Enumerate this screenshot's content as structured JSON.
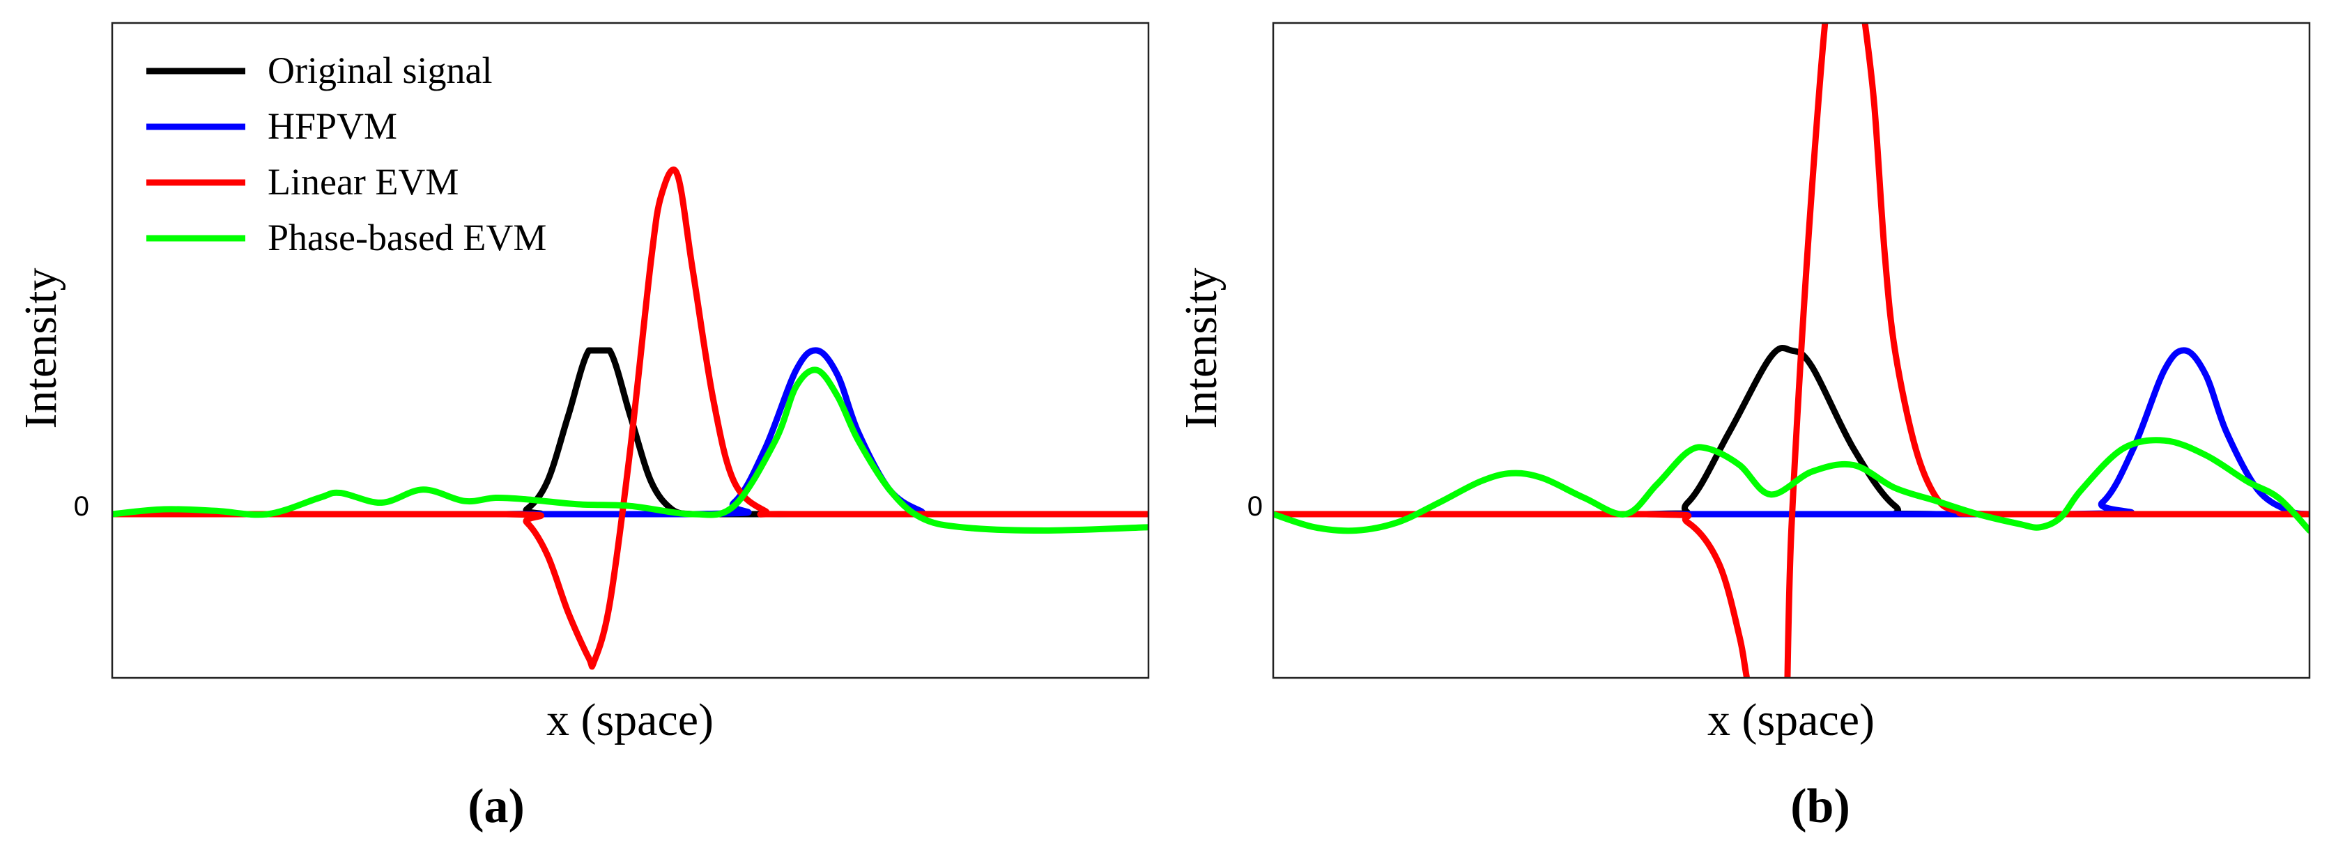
{
  "chart_data": [
    {
      "type": "line",
      "panel_label": "(a)",
      "xlabel": "x (space)",
      "ylabel": "Intensity",
      "y_ticks": [
        "0"
      ],
      "xlim": [
        0,
        10
      ],
      "ylim": [
        -1,
        3
      ],
      "grid": false,
      "legend": {
        "position": "top-left",
        "entries": [
          "Original signal",
          "HFPVM",
          "Linear EVM",
          "Phase-based EVM"
        ]
      },
      "series": [
        {
          "name": "Original signal",
          "color": "#000000",
          "x": [
            0,
            3.8,
            4.0,
            4.2,
            4.4,
            4.6,
            4.8,
            5.0,
            5.2,
            5.4,
            5.6,
            5.8,
            6.0,
            10
          ],
          "y": [
            0,
            0,
            0.03,
            0.2,
            0.6,
            1.0,
            1.0,
            0.6,
            0.2,
            0.03,
            0,
            0,
            0,
            0
          ]
        },
        {
          "name": "HFPVM",
          "color": "#0000ff",
          "x": [
            0,
            5.6,
            6.0,
            6.3,
            6.6,
            6.8,
            7.0,
            7.2,
            7.5,
            7.8,
            8.0,
            10
          ],
          "y": [
            0,
            0,
            0.07,
            0.4,
            0.88,
            1.0,
            0.85,
            0.5,
            0.15,
            0.02,
            0,
            0
          ]
        },
        {
          "name": "Linear EVM",
          "color": "#ff0000",
          "x": [
            0,
            3.8,
            4.0,
            4.2,
            4.4,
            4.6,
            4.65,
            4.8,
            5.0,
            5.2,
            5.3,
            5.45,
            5.6,
            5.8,
            6.0,
            6.3,
            6.6,
            10
          ],
          "y": [
            0,
            0,
            -0.05,
            -0.25,
            -0.6,
            -0.88,
            -0.9,
            -0.55,
            0.4,
            1.55,
            1.95,
            2.08,
            1.5,
            0.7,
            0.2,
            0.02,
            0,
            0
          ]
        },
        {
          "name": "Phase-based EVM",
          "color": "#00ff00",
          "x": [
            0,
            0.5,
            1.0,
            1.5,
            2.0,
            2.2,
            2.6,
            3.0,
            3.4,
            3.7,
            4.0,
            4.5,
            5.0,
            5.6,
            6.0,
            6.4,
            6.6,
            6.8,
            7.0,
            7.2,
            7.5,
            7.8,
            8.2,
            9.0,
            10
          ],
          "y": [
            0,
            0.03,
            0.02,
            0.0,
            0.1,
            0.13,
            0.07,
            0.15,
            0.08,
            0.1,
            0.09,
            0.06,
            0.05,
            0.0,
            0.05,
            0.45,
            0.78,
            0.88,
            0.72,
            0.45,
            0.15,
            -0.02,
            -0.08,
            -0.1,
            -0.08
          ]
        }
      ]
    },
    {
      "type": "line",
      "panel_label": "(b)",
      "xlabel": "x (space)",
      "ylabel": "Intensity",
      "y_ticks": [
        "0"
      ],
      "xlim": [
        0,
        10
      ],
      "ylim": [
        -1,
        3
      ],
      "grid": false,
      "series": [
        {
          "name": "Original signal",
          "color": "#000000",
          "x": [
            0,
            3.6,
            4.0,
            4.4,
            4.8,
            5.0,
            5.2,
            5.6,
            6.0,
            6.4,
            10
          ],
          "y": [
            0,
            0,
            0.07,
            0.5,
            0.96,
            1.0,
            0.9,
            0.4,
            0.05,
            0,
            0
          ]
        },
        {
          "name": "HFPVM",
          "color": "#0000ff",
          "x": [
            0,
            7.6,
            8.0,
            8.3,
            8.6,
            8.8,
            9.0,
            9.2,
            9.5,
            9.8,
            10
          ],
          "y": [
            0,
            0,
            0.07,
            0.4,
            0.88,
            1.0,
            0.85,
            0.5,
            0.15,
            0.02,
            0
          ]
        },
        {
          "name": "Linear EVM",
          "color": "#ff0000",
          "x": [
            0,
            3.6,
            4.0,
            4.3,
            4.5,
            4.6,
            4.9,
            5.0,
            5.2,
            5.4,
            5.6,
            5.7,
            5.8,
            5.9,
            6.0,
            6.2,
            6.4,
            6.6,
            7.0,
            10
          ],
          "y": [
            0,
            0,
            -0.05,
            -0.3,
            -0.75,
            -1.1,
            -2.0,
            -0.1,
            2.0,
            3.4,
            3.5,
            3.05,
            2.5,
            1.6,
            1.0,
            0.4,
            0.1,
            0.02,
            0,
            0
          ]
        },
        {
          "name": "Phase-based EVM",
          "color": "#00ff00",
          "x": [
            0,
            0.4,
            0.8,
            1.2,
            1.6,
            2.0,
            2.3,
            2.6,
            3.0,
            3.4,
            3.7,
            4.0,
            4.2,
            4.5,
            4.8,
            5.2,
            5.6,
            6.0,
            6.4,
            6.8,
            7.2,
            7.4,
            7.6,
            7.8,
            8.2,
            8.6,
            9.0,
            9.4,
            9.7,
            10
          ],
          "y": [
            0,
            -0.08,
            -0.1,
            -0.05,
            0.07,
            0.2,
            0.25,
            0.22,
            0.1,
            0.0,
            0.18,
            0.38,
            0.4,
            0.3,
            0.12,
            0.26,
            0.3,
            0.16,
            0.08,
            0.0,
            -0.06,
            -0.08,
            -0.02,
            0.15,
            0.4,
            0.45,
            0.36,
            0.2,
            0.1,
            -0.1
          ]
        }
      ]
    }
  ]
}
